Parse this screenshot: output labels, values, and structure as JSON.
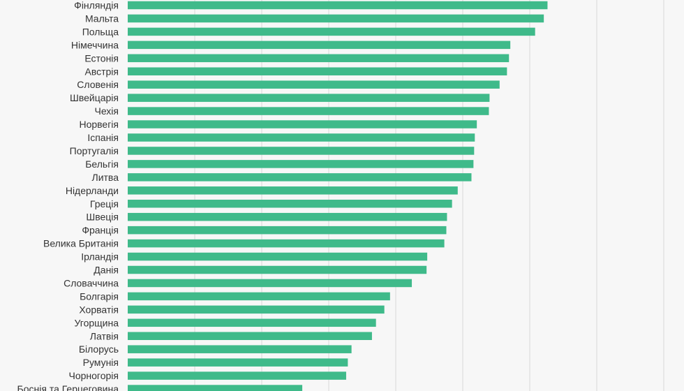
{
  "chart_data": {
    "type": "bar",
    "orientation": "horizontal",
    "categories": [
      "Фінляндія",
      "Мальта",
      "Польща",
      "Німеччина",
      "Естонія",
      "Австрія",
      "Словенія",
      "Швейцарія",
      "Чехія",
      "Норвегія",
      "Іспанія",
      "Португалія",
      "Бельгія",
      "Литва",
      "Нідерланди",
      "Греція",
      "Швеція",
      "Франція",
      "Велика Британія",
      "Ірландія",
      "Данія",
      "Словаччина",
      "Болгарія",
      "Хорватія",
      "Угорщина",
      "Латвія",
      "Білорусь",
      "Румунія",
      "Чорногорія",
      "Боснія та Герцеговина"
    ],
    "values": [
      125.3,
      124.2,
      121.6,
      114.2,
      113.8,
      113.2,
      111.0,
      108.0,
      107.8,
      104.2,
      103.6,
      103.4,
      103.2,
      102.6,
      98.5,
      96.8,
      95.3,
      95.1,
      94.5,
      89.4,
      89.2,
      84.8,
      78.3,
      76.6,
      74.1,
      72.9,
      66.8,
      65.7,
      65.2,
      52.1
    ],
    "xlim": [
      0,
      165
    ],
    "grid": true,
    "colors": {
      "bar": "#3fba8a",
      "grid": "#d9d9d9",
      "background": "#f7f7f7",
      "label": "#333333"
    }
  }
}
